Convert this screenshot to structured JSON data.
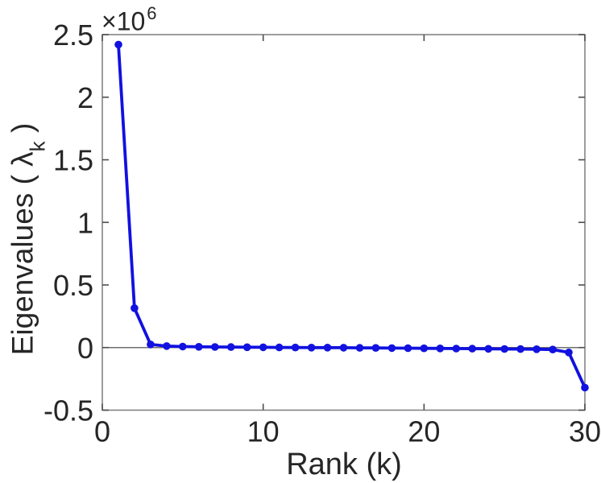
{
  "window": {
    "background": "#ffffff"
  },
  "colors": {
    "line": "#1111e0",
    "axis_text": "#262626",
    "axis_box": "#7d7d7d",
    "tick": "#4d4d4d",
    "zero_line": "#6f6f6f"
  },
  "chart_data": {
    "type": "line",
    "title": "",
    "xlabel": "Rank (k)",
    "ylabel": "Eigenvalues ( λk )",
    "ylabel_parts": {
      "prefix": "Eigenvalues ( λ",
      "subscript": "k",
      "suffix": " )"
    },
    "y_offset_label": {
      "base": "×10",
      "exponent": "6"
    },
    "xlim": [
      0,
      30
    ],
    "ylim": [
      -500000,
      2500000
    ],
    "xticks": {
      "values": [
        0,
        10,
        20,
        30
      ],
      "labels": [
        "0",
        "10",
        "20",
        "30"
      ]
    },
    "yticks": {
      "values": [
        -500000,
        0,
        500000,
        1000000,
        1500000,
        2000000,
        2500000
      ],
      "labels": [
        "-0.5",
        "0",
        "0.5",
        "1",
        "1.5",
        "2",
        "2.5"
      ]
    },
    "grid": false,
    "legend": null,
    "zero_line_y": 0,
    "series": [
      {
        "name": "eigenvalues",
        "marker": "filled-circle",
        "color": "#1111e0",
        "x": [
          1,
          2,
          3,
          4,
          5,
          6,
          7,
          8,
          9,
          10,
          11,
          12,
          13,
          14,
          15,
          16,
          17,
          18,
          19,
          20,
          21,
          22,
          23,
          24,
          25,
          26,
          27,
          28,
          29,
          30
        ],
        "y": [
          2420000,
          315000,
          25000,
          12000,
          8000,
          6000,
          5000,
          4000,
          3000,
          2000,
          1000,
          500,
          0,
          -500,
          -1000,
          -2000,
          -3000,
          -4000,
          -5000,
          -6000,
          -7000,
          -8000,
          -9000,
          -10000,
          -11000,
          -12000,
          -13500,
          -16000,
          -39000,
          -320000
        ]
      }
    ]
  }
}
